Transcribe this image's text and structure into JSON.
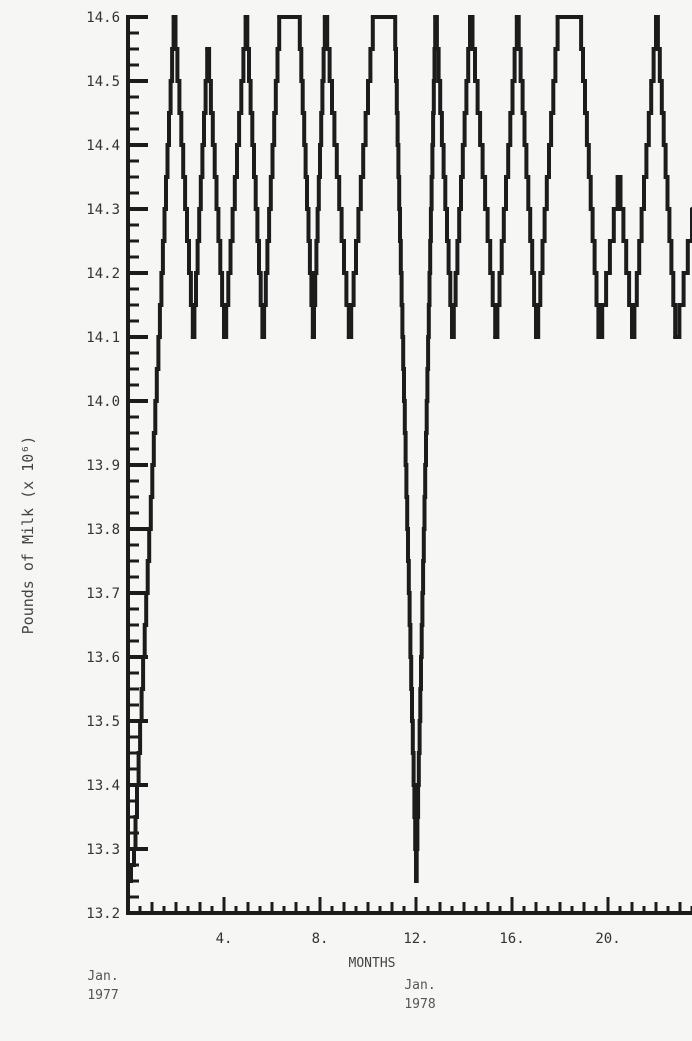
{
  "chart_data": {
    "type": "line",
    "title": "",
    "ylabel": "Pounds of Milk (x 10⁶)",
    "xlabel": "MONTHS",
    "ylim": [
      13.2,
      14.6
    ],
    "xlim": [
      0,
      23.5
    ],
    "grid": false,
    "y_ticks": [
      "13.2",
      "13.3",
      "13.4",
      "13.5",
      "13.6",
      "13.7",
      "13.8",
      "13.9",
      "14.0",
      "14.1",
      "14.2",
      "14.3",
      "14.4",
      "14.5",
      "14.6"
    ],
    "x_ticks": [
      {
        "value": 4,
        "label": "4."
      },
      {
        "value": 8,
        "label": "8."
      },
      {
        "value": 12,
        "label": "12."
      },
      {
        "value": 16,
        "label": "16."
      },
      {
        "value": 20,
        "label": "20."
      }
    ],
    "date_labels": [
      {
        "month": "Jan.",
        "year": "1977"
      },
      {
        "month": "Jan.",
        "year": "1978"
      }
    ],
    "series": [
      {
        "x": [
          0,
          0.25,
          1.9,
          2.7,
          3.3,
          4.0,
          4.9,
          5.6,
          6.3,
          7.1,
          7.7,
          8.2,
          9.2,
          10.2,
          11.1,
          12.0,
          12.8,
          13.5,
          14.25,
          15.3,
          16.2,
          17.0,
          17.9,
          18.8,
          19.6,
          20.4,
          21.0,
          22.0,
          22.8,
          23.5
        ],
        "values": [
          13.25,
          13.3,
          14.6,
          14.1,
          14.55,
          14.1,
          14.6,
          14.1,
          14.6,
          14.6,
          14.1,
          14.6,
          14.1,
          14.6,
          14.6,
          13.25,
          14.6,
          14.1,
          14.6,
          14.1,
          14.6,
          14.1,
          14.6,
          14.6,
          14.1,
          14.35,
          14.1,
          14.6,
          14.1,
          14.3
        ]
      }
    ]
  },
  "colors": {
    "line": "#1c1c1c",
    "axis": "#1c1c1c",
    "background": "#f6f6f4"
  }
}
